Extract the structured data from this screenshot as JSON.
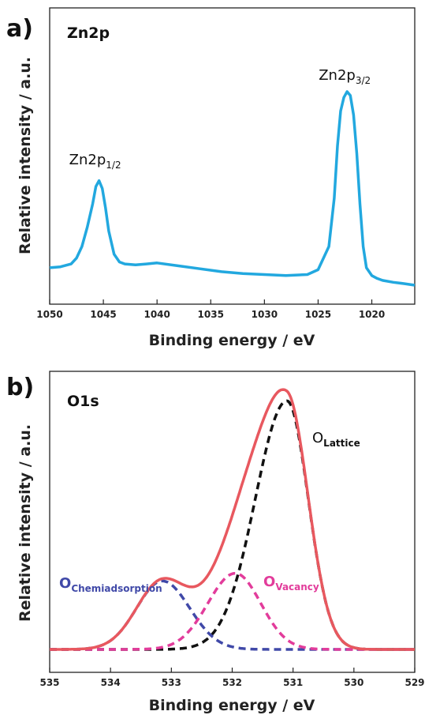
{
  "chart_data": [
    {
      "panel": "a)",
      "type": "line",
      "title": "Zn2p",
      "xlabel": "Binding energy / eV",
      "ylabel": "Relative intensity / a.u.",
      "xlim": [
        1050,
        1016
      ],
      "x_reversed": true,
      "xticks": [
        1050,
        1045,
        1040,
        1035,
        1030,
        1025,
        1020
      ],
      "yticks": [],
      "grid": false,
      "series": [
        {
          "color": "#22a8df",
          "style": "solid",
          "x": [
            1050,
            1049,
            1048,
            1047.5,
            1047,
            1046.5,
            1046,
            1045.7,
            1045.4,
            1045.1,
            1044.8,
            1044.5,
            1044,
            1043.5,
            1043,
            1042,
            1041,
            1040,
            1038,
            1036,
            1034,
            1032,
            1030,
            1028,
            1026,
            1025,
            1024,
            1023.5,
            1023.2,
            1022.9,
            1022.6,
            1022.3,
            1022,
            1021.7,
            1021.4,
            1021.1,
            1020.8,
            1020.5,
            1020,
            1019.5,
            1019,
            1018,
            1017,
            1016
          ],
          "y": [
            0.09,
            0.095,
            0.11,
            0.14,
            0.2,
            0.3,
            0.42,
            0.51,
            0.54,
            0.5,
            0.4,
            0.28,
            0.16,
            0.12,
            0.11,
            0.105,
            0.11,
            0.115,
            0.1,
            0.085,
            0.07,
            0.06,
            0.055,
            0.05,
            0.055,
            0.08,
            0.2,
            0.45,
            0.72,
            0.9,
            0.97,
            1.0,
            0.98,
            0.88,
            0.68,
            0.42,
            0.2,
            0.09,
            0.05,
            0.035,
            0.025,
            0.015,
            0.008,
            0.0
          ]
        }
      ],
      "annotations": [
        {
          "main": "Zn2p",
          "sub": "1/2",
          "x": 1045.4
        },
        {
          "main": "Zn2p",
          "sub": "3/2",
          "x": 1022.3
        }
      ]
    },
    {
      "panel": "b)",
      "type": "line",
      "title": "O1s",
      "xlabel": "Binding energy / eV",
      "ylabel": "Relative intensity / a.u.",
      "xlim": [
        535,
        529
      ],
      "x_reversed": true,
      "xticks": [
        535,
        534,
        533,
        532,
        531,
        530,
        529
      ],
      "yticks": [],
      "grid": false,
      "series": [
        {
          "color": "#e8585f",
          "style": "solid",
          "components": [
            "lattice",
            "chemiadsorption",
            "vacancy"
          ]
        },
        {
          "color": "#111111",
          "style": "dashed",
          "gaussian": {
            "center": 531.1,
            "height": 0.98,
            "sigma_left": 0.52,
            "sigma_right": 0.35
          }
        },
        {
          "color": "#4049a8",
          "style": "dashed",
          "gaussian": {
            "center": 533.15,
            "height": 0.27,
            "sigma_left": 0.42,
            "sigma_right": 0.45
          }
        },
        {
          "color": "#e23c9b",
          "style": "dashed",
          "gaussian": {
            "center": 531.95,
            "height": 0.3,
            "sigma_left": 0.45,
            "sigma_right": 0.42
          }
        }
      ],
      "annotations": [
        {
          "main": "O",
          "sub": "Lattice",
          "color": "#111111"
        },
        {
          "main": "O",
          "sub": "Chemiadsorption",
          "color": "#4049a8"
        },
        {
          "main": "O",
          "sub": "Vacancy",
          "color": "#e23c9b"
        }
      ]
    }
  ]
}
